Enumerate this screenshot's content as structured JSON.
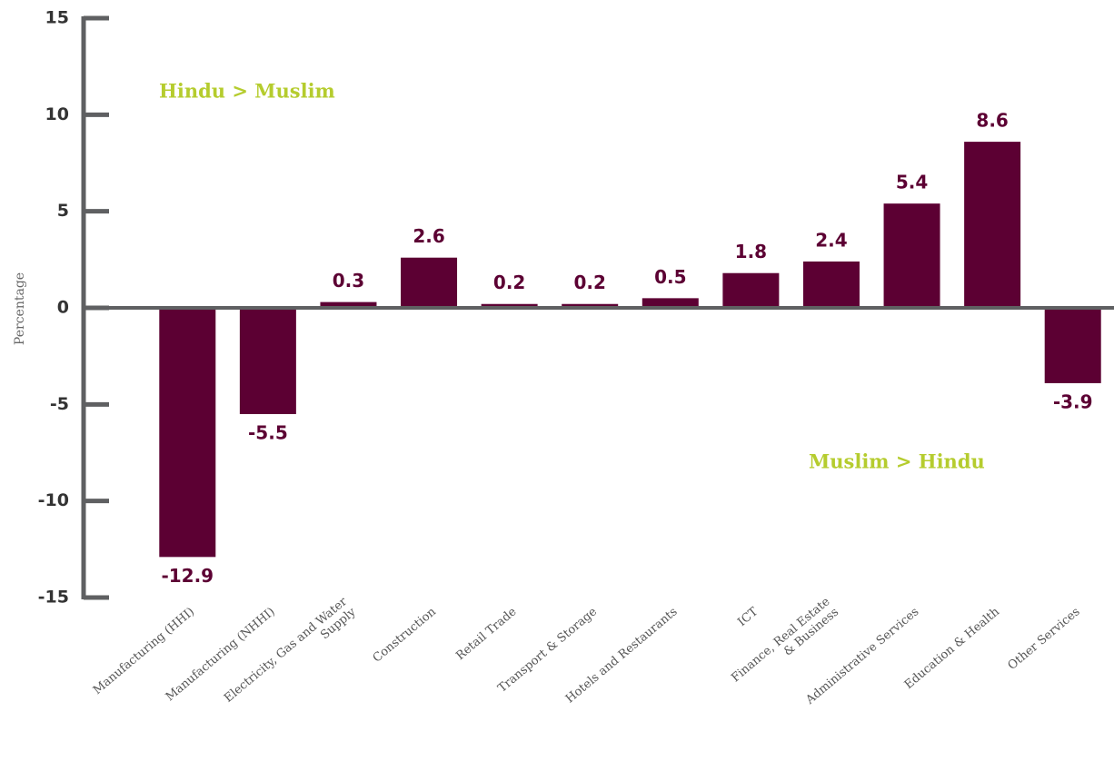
{
  "chart_data": {
    "type": "bar",
    "y_label": "Percentage",
    "annotations": [
      "Hindu > Muslim",
      "Muslim > Hindu"
    ],
    "categories": [
      "Manufacturing (HHI)",
      "Manufacturing (NHHI)",
      "Electricity, Gas and Water\nSupply",
      "Construction",
      "Retail Trade",
      "Transport & Storage",
      "Hotels and Restaurants",
      "ICT",
      "Finance, Real Estate\n& Business",
      "Administrative Services",
      "Education & Health",
      "Other Services"
    ],
    "values": [
      -12.9,
      -5.5,
      0.3,
      2.6,
      0.2,
      0.2,
      0.5,
      1.8,
      2.4,
      5.4,
      8.6,
      -3.9
    ],
    "color": "#5c0033",
    "annotation_color": "#b5cc2e",
    "ylim": [
      -15,
      15
    ],
    "yticks": [
      -15,
      -10,
      -5,
      0,
      5,
      10,
      15
    ]
  }
}
